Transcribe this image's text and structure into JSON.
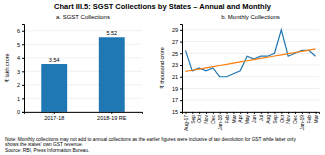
{
  "title": "Chart III.5: SGST Collections by States – Annual and Monthly",
  "note": [
    "Note: Monthly collections may not add to annual collections as the earlier figures were inclusive of tax devolution for GST while latter only",
    "shows the states' own GST revenue.",
    "Source: RBI, Press Information Bureau."
  ],
  "chart_data": [
    {
      "type": "bar",
      "title": "a. SGST Collections",
      "categories": [
        "2017-18",
        "2018-19 RE"
      ],
      "values": [
        3.54,
        5.52
      ],
      "ylabel": "₹ lakh crore",
      "ylim": [
        0,
        6.5
      ],
      "yticks": [
        0,
        1,
        2,
        3,
        4,
        5,
        6
      ],
      "grid": true,
      "data_labels": true
    },
    {
      "type": "line",
      "title": "b. Monthly Collections",
      "categories": [
        "Aug-17",
        "Sep",
        "Oct",
        "Nov",
        "Dec",
        "Jan-18",
        "Feb",
        "Mar",
        "Apr",
        "May",
        "Jun",
        "Jul",
        "Aug",
        "Sep",
        "Oct",
        "Nov",
        "Dec",
        "Jan-19",
        "Feb",
        "Mar"
      ],
      "series": [
        {
          "values": [
            25.5,
            22.0,
            22.5,
            22.0,
            22.5,
            21.0,
            21.0,
            21.5,
            22.0,
            24.5,
            24.0,
            24.5,
            24.5,
            25.0,
            29.0,
            24.5,
            25.0,
            25.5,
            25.5,
            24.5
          ]
        },
        {
          "values": [
            21.907,
            22.109,
            22.311,
            22.513,
            22.715,
            22.917,
            23.118,
            23.32,
            23.522,
            23.724,
            23.926,
            24.128,
            24.33,
            24.532,
            24.733,
            24.935,
            25.137,
            25.339,
            25.541,
            25.743
          ]
        }
      ],
      "ylabel": "₹ thousand crore",
      "ylim": [
        15,
        30
      ],
      "yticks": [
        15,
        17,
        19,
        21,
        23,
        25,
        27,
        29
      ],
      "grid": true
    }
  ]
}
